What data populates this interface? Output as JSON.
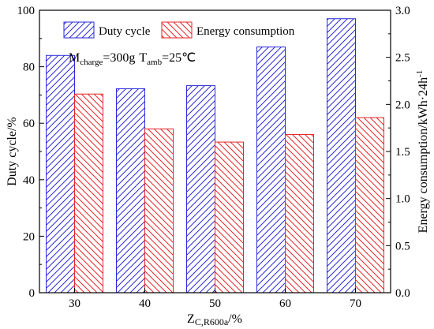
{
  "chart_data": {
    "type": "bar",
    "categories": [
      "30",
      "40",
      "50",
      "60",
      "70"
    ],
    "series": [
      {
        "name": "Duty cycle",
        "axis": "left",
        "color": "#2a2adb",
        "values": [
          84,
          72.2,
          73.3,
          87,
          97
        ]
      },
      {
        "name": "Energy consumption",
        "axis": "right",
        "color": "#e8262a",
        "values": [
          2.11,
          1.74,
          1.6,
          1.68,
          1.86
        ]
      }
    ],
    "xlabel": {
      "main": "Z",
      "sub": "C,R600a",
      "suffix": "/%"
    },
    "ylabel_left": "Duty cycle/%",
    "ylabel_right": {
      "main": "Energy consumption/kWh·24h",
      "sup": "-1"
    },
    "ylim_left": [
      0,
      100
    ],
    "ylim_right": [
      0,
      3.0
    ],
    "yticks_left": [
      "0",
      "20",
      "40",
      "60",
      "80",
      "100"
    ],
    "yticks_right": [
      "0.0",
      "0.5",
      "1.0",
      "1.5",
      "2.0",
      "2.5",
      "3.0"
    ],
    "annotation": {
      "m_main": "M",
      "m_sub": "charge",
      "m_value": "=300g",
      "t_main": "T",
      "t_sub": "amb",
      "t_value": "=25℃"
    },
    "legend_position": "top",
    "grid": false,
    "pattern": "diagonal-hatch"
  }
}
